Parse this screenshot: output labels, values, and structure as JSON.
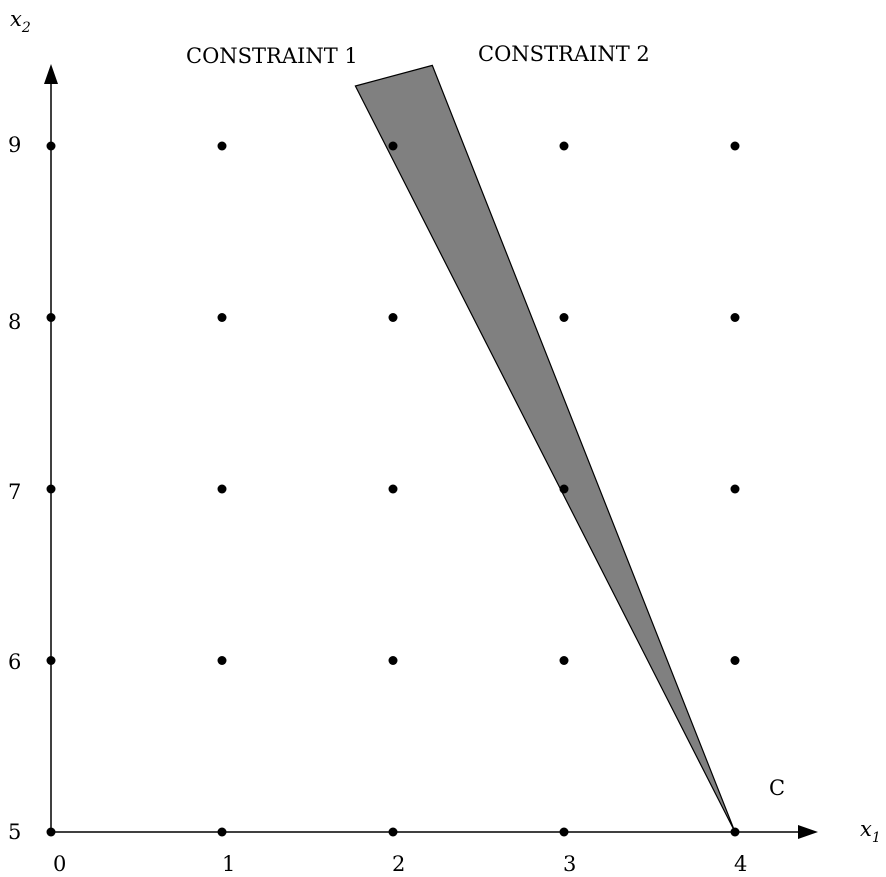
{
  "axes": {
    "x_label": "x",
    "x_label_subscript": "1",
    "y_label": "x",
    "y_label_subscript": "2",
    "x_ticks": [
      "0",
      "1",
      "2",
      "3",
      "4"
    ],
    "y_ticks": [
      "5",
      "6",
      "7",
      "8",
      "9"
    ]
  },
  "labels": {
    "constraint1": "CONSTRAINT 1",
    "constraint2": "CONSTRAINT 2",
    "corner": "C"
  },
  "lattice": {
    "x_values": [
      0,
      1,
      2,
      3,
      4
    ],
    "y_values": [
      5,
      6,
      7,
      8,
      9
    ]
  },
  "region": {
    "fill_color": "#808080",
    "vertices": [
      [
        1.78,
        9.35
      ],
      [
        2.23,
        9.47
      ],
      [
        4.0,
        5.0
      ]
    ]
  }
}
